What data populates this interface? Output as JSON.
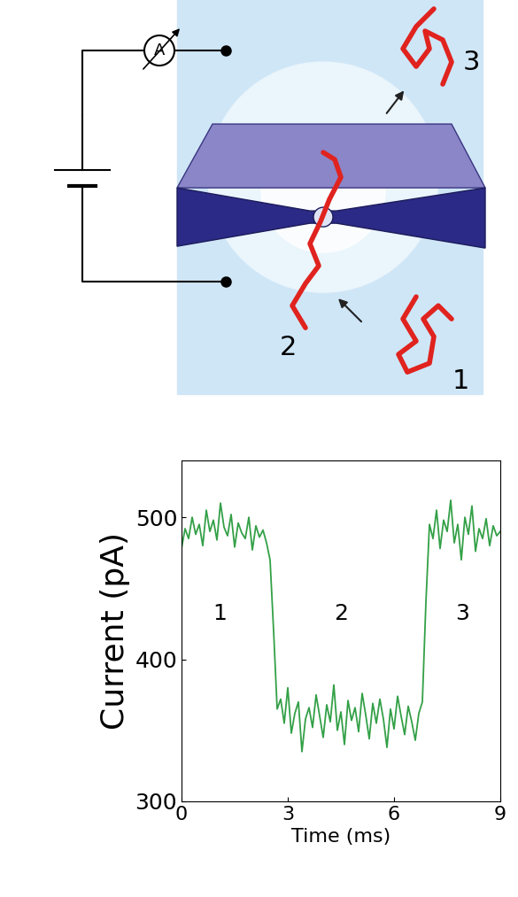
{
  "diagram": {
    "molecule_labels": [
      "1",
      "2",
      "3"
    ],
    "meter": "A"
  },
  "chart_data": {
    "type": "line",
    "x": [
      0.0,
      0.1,
      0.2,
      0.3,
      0.4,
      0.5,
      0.6,
      0.7,
      0.8,
      0.9,
      1.0,
      1.1,
      1.2,
      1.3,
      1.4,
      1.5,
      1.6,
      1.7,
      1.8,
      1.9,
      2.0,
      2.1,
      2.2,
      2.3,
      2.4,
      2.5,
      2.6,
      2.7,
      2.8,
      2.9,
      3.0,
      3.1,
      3.2,
      3.3,
      3.4,
      3.5,
      3.6,
      3.7,
      3.8,
      3.9,
      4.0,
      4.1,
      4.2,
      4.3,
      4.4,
      4.5,
      4.6,
      4.7,
      4.8,
      4.9,
      5.0,
      5.1,
      5.2,
      5.3,
      5.4,
      5.5,
      5.6,
      5.7,
      5.8,
      5.9,
      6.0,
      6.1,
      6.2,
      6.3,
      6.4,
      6.5,
      6.6,
      6.7,
      6.8,
      6.9,
      7.0,
      7.1,
      7.2,
      7.3,
      7.4,
      7.5,
      7.6,
      7.7,
      7.8,
      7.9,
      8.0,
      8.1,
      8.2,
      8.3,
      8.4,
      8.5,
      8.6,
      8.7,
      8.8,
      8.9,
      9.0
    ],
    "values": [
      478,
      492,
      485,
      500,
      488,
      495,
      480,
      505,
      490,
      498,
      484,
      510,
      493,
      487,
      502,
      479,
      496,
      489,
      485,
      500,
      477,
      494,
      486,
      491,
      482,
      470,
      420,
      365,
      372,
      355,
      380,
      348,
      362,
      370,
      335,
      358,
      366,
      352,
      375,
      360,
      345,
      368,
      356,
      382,
      350,
      363,
      340,
      371,
      357,
      366,
      349,
      376,
      361,
      344,
      369,
      355,
      372,
      358,
      338,
      365,
      351,
      374,
      360,
      347,
      367,
      356,
      343,
      362,
      370,
      440,
      495,
      485,
      505,
      478,
      498,
      490,
      512,
      482,
      495,
      470,
      500,
      488,
      508,
      476,
      492,
      485,
      499,
      480,
      494,
      487,
      490
    ],
    "color": "#33a047",
    "x_label": "Time (ms)",
    "y_label": "Current (pA)",
    "xlim": [
      0,
      9
    ],
    "xticks": [
      0,
      3,
      6,
      9
    ],
    "ylim": [
      300,
      540
    ],
    "yticks": [
      300,
      400,
      500
    ],
    "annotations": [
      "1",
      "2",
      "3"
    ]
  }
}
